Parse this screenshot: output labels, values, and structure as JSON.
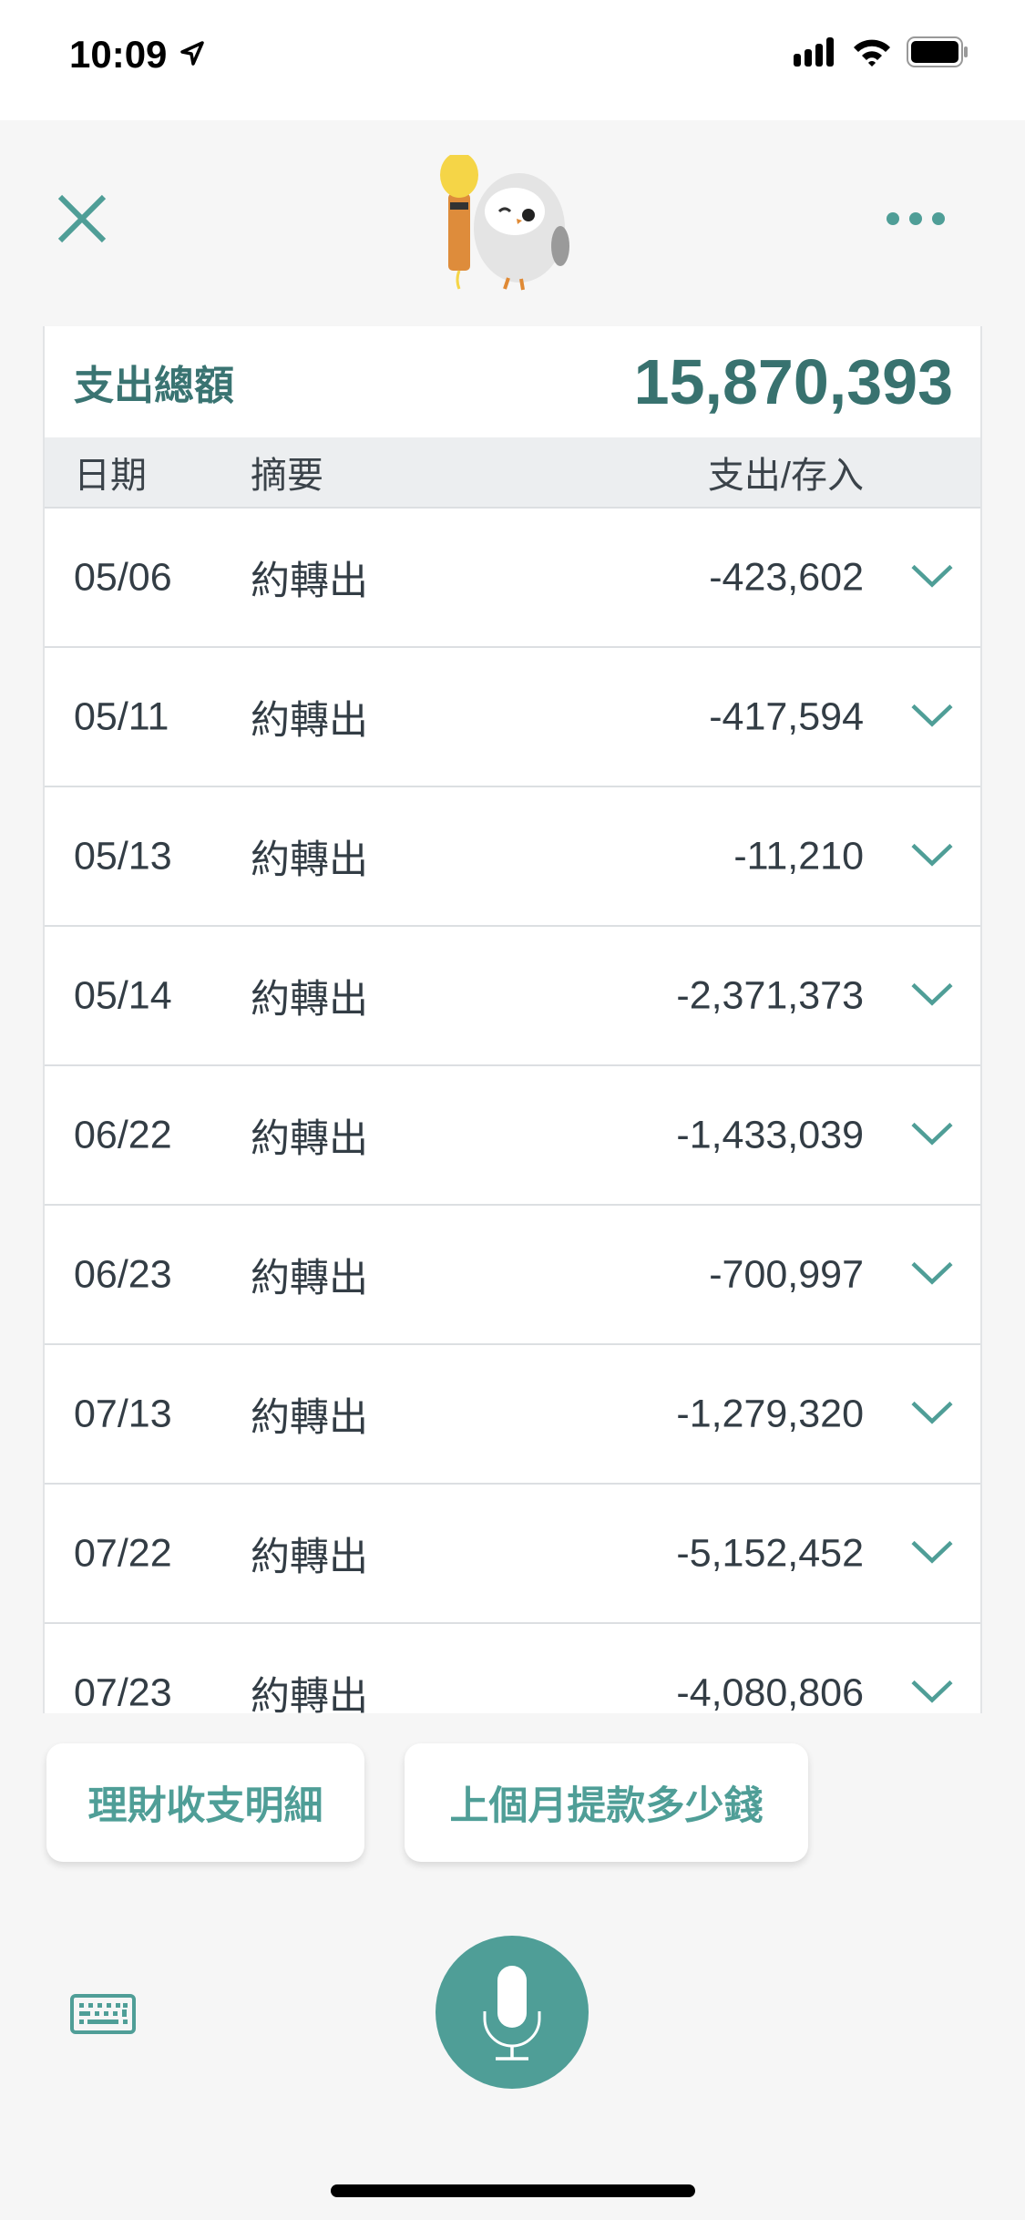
{
  "status_bar": {
    "time": "10:09"
  },
  "header": {
    "close_icon": "close-icon",
    "more_icon": "more-icon",
    "mascot": "owl-with-microphone"
  },
  "summary": {
    "label": "支出總額",
    "total": "15,870,393"
  },
  "table": {
    "columns": [
      "日期",
      "摘要",
      "支出/存入"
    ],
    "rows": [
      {
        "date": "05/06",
        "desc": "約轉出",
        "amount": "-423,602"
      },
      {
        "date": "05/11",
        "desc": "約轉出",
        "amount": "-417,594"
      },
      {
        "date": "05/13",
        "desc": "約轉出",
        "amount": "-11,210"
      },
      {
        "date": "05/14",
        "desc": "約轉出",
        "amount": "-2,371,373"
      },
      {
        "date": "06/22",
        "desc": "約轉出",
        "amount": "-1,433,039"
      },
      {
        "date": "06/23",
        "desc": "約轉出",
        "amount": "-700,997"
      },
      {
        "date": "07/13",
        "desc": "約轉出",
        "amount": "-1,279,320"
      },
      {
        "date": "07/22",
        "desc": "約轉出",
        "amount": "-5,152,452"
      },
      {
        "date": "07/23",
        "desc": "約轉出",
        "amount": "-4,080,806"
      }
    ]
  },
  "suggestions": [
    "理財收支明細",
    "上個月提款多少錢"
  ],
  "colors": {
    "accent": "#4f9e97",
    "total": "#38726f"
  }
}
